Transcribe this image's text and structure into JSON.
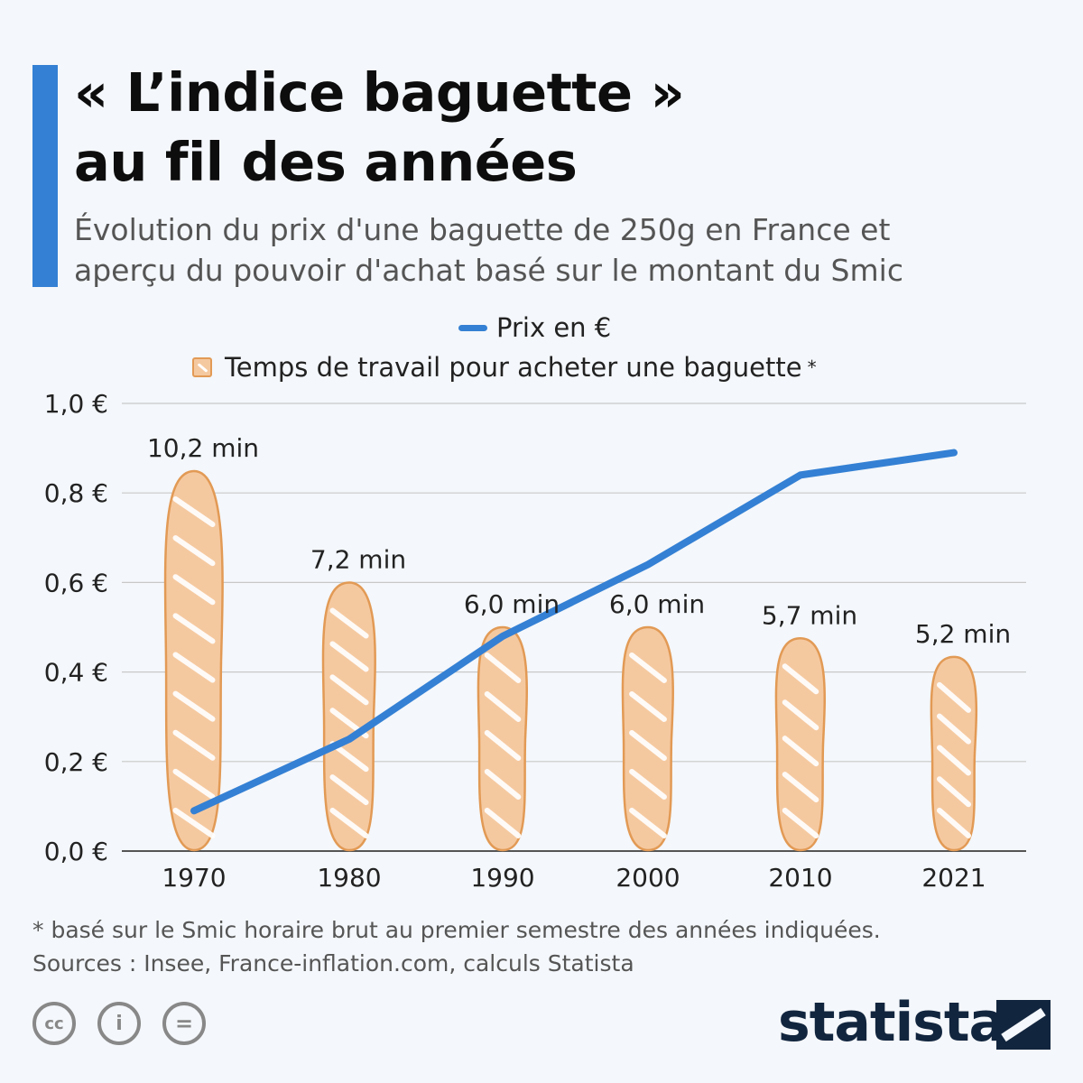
{
  "title": {
    "line1": "« L’indice baguette »",
    "line2": "au fil des années"
  },
  "subtitle": {
    "line1": "Évolution du prix d'une baguette de 250g en France et",
    "line2": "aperçu du pouvoir d'achat basé sur le montant du Smic"
  },
  "colors": {
    "accent": "#3480d4",
    "line": "#3480d4",
    "baguette_fill": "#f5c9a0",
    "baguette_stroke": "#e29a55",
    "grid": "#c8c8c8",
    "brand": "#12253e"
  },
  "chart_data": {
    "type": "line",
    "legend": {
      "position": "top-center",
      "entries": [
        {
          "label": "Prix en €",
          "marker": "line"
        },
        {
          "label": "Temps de travail pour acheter une baguette",
          "marker": "baguette",
          "note_marker": "*"
        }
      ]
    },
    "categories": [
      "1970",
      "1980",
      "1990",
      "2000",
      "2010",
      "2021"
    ],
    "y_axis": {
      "min": 0,
      "max": 1.0,
      "ticks": [
        0,
        0.2,
        0.4,
        0.6,
        0.8,
        1.0
      ],
      "tick_labels": [
        "0,0 €",
        "0,2 €",
        "0,4 €",
        "0,6 €",
        "0,8 €",
        "1,0 €"
      ]
    },
    "grid": true,
    "series": [
      {
        "name": "Prix en €",
        "kind": "line",
        "values": [
          0.09,
          0.25,
          0.48,
          0.64,
          0.84,
          0.89
        ]
      },
      {
        "name": "Temps de travail pour acheter une baguette",
        "kind": "baguette-pictogram",
        "minutes": [
          10.2,
          7.2,
          6.0,
          6.0,
          5.7,
          5.2
        ],
        "labels": [
          "10,2  min",
          "7,2 min",
          "6,0 min",
          "6,0 min",
          "5,7 min",
          "5,2 min"
        ]
      }
    ]
  },
  "footnote": "* basé sur le Smic horaire brut au premier semestre des années indiquées.",
  "source": "Sources : Insee, France-inflation.com, calculs Statista",
  "license_icons": [
    "cc-icon",
    "attribution-icon",
    "no-derivatives-icon"
  ],
  "license_glyphs": [
    "cc",
    "i",
    "="
  ],
  "brand": {
    "name": "statista"
  }
}
